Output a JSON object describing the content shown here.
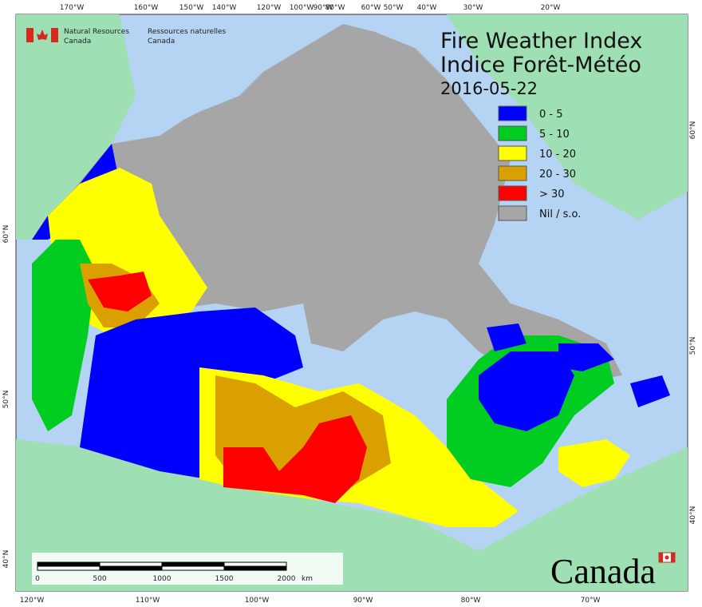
{
  "header": {
    "agency_en": [
      "Natural Resources",
      "Canada"
    ],
    "agency_fr": [
      "Ressources naturelles",
      "Canada"
    ]
  },
  "title": {
    "line1": "Fire Weather Index",
    "line2": "Indice Forêt-Météo",
    "date": "2016-05-22"
  },
  "legend": [
    {
      "label": "0 - 5",
      "color": "#0000ff"
    },
    {
      "label": "5 - 10",
      "color": "#00cc22"
    },
    {
      "label": "10 - 20",
      "color": "#ffff00"
    },
    {
      "label": "20 - 30",
      "color": "#d9a000"
    },
    {
      "label": "> 30",
      "color": "#ff0000"
    },
    {
      "label": "Nil / s.o.",
      "color": "#a6a6a6"
    }
  ],
  "top_labels": [
    "170°W",
    "160°W",
    "150°W",
    "140°W",
    "120°W",
    "100°W",
    "90°W",
    "80°W",
    "60°W",
    "50°W",
    "40°W",
    "30°W",
    "20°W"
  ],
  "bottom_labels": [
    "120°W",
    "110°W",
    "100°W",
    "90°W",
    "80°W",
    "70°W"
  ],
  "left_labels": [
    "60°N",
    "50°N",
    "40°N"
  ],
  "right_labels": [
    "60°N",
    "50°N",
    "40°N"
  ],
  "scale": {
    "ticks": [
      "0",
      "500",
      "1000",
      "1500",
      "2000"
    ],
    "unit": "km"
  },
  "wordmark": "Canada"
}
